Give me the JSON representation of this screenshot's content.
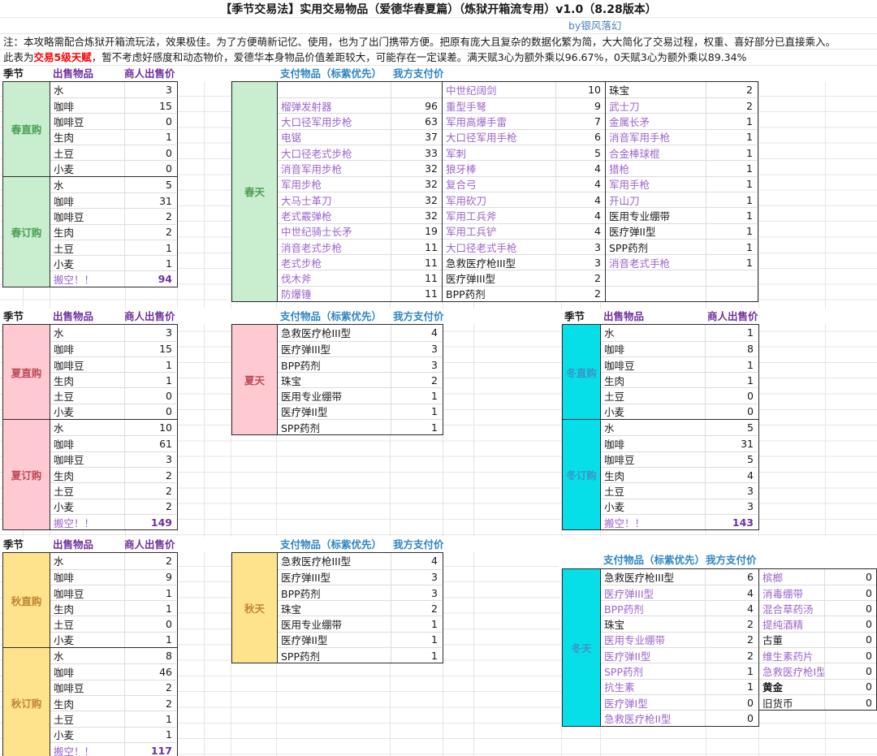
{
  "title": "【季节交易法】实用交易物品（爱德华春夏篇）（炼狱开箱流专用）v1.0（8.28版本）",
  "byline": "by银风落幻",
  "note1": "注：本攻略需配合炼狱开箱流玩法，效果极佳。为了方便萌新记忆、使用，也为了出门携带方便。把原有庞大且复杂的数据化繁为简，大大简化了交易过程，权重、喜好部分已直接乘入。",
  "note2": {
    "prefix": "此表为",
    "highlight": "交易5级天赋",
    "suffix": "，暂不考虑好感度和动态物价，爱德华本身物品价值差距较大，可能存在一定误差。满天赋3心为额外乘以96.67%，0天赋3心为额外乘以89.34%"
  },
  "headers": {
    "season": "季节",
    "sell_item": "出售物品",
    "merchant_price": "商人出售价",
    "pay_item": "支付物品（标紫优先）",
    "our_price": "我方支付价"
  },
  "colors": {
    "item_purple": "#9B63CE",
    "total_purple": "#7030A0",
    "header_purple": "#7030A0",
    "header_blue": "#2E86C4",
    "byline_blue": "#4E7FBF",
    "note_red": "#FF0000",
    "spring_fill": "#C8EDCF",
    "spring_text": "#4B9F55",
    "summer_fill": "#FFC9D2",
    "summer_text": "#BE4A55",
    "autumn_fill": "#FFE28C",
    "autumn_text": "#C08633",
    "winter_fill": "#06DFE8",
    "winter_text": "#3D93C5",
    "border_dark": "#2B2B2B",
    "grid_line": "#E5E5E5",
    "inner_line": "#DCDCDC"
  },
  "sell_tables": [
    {
      "id": "spring-buy",
      "label": "春直购",
      "theme": "spring",
      "rows": [
        [
          "水",
          3
        ],
        [
          "咖啡",
          15
        ],
        [
          "咖啡豆",
          0
        ],
        [
          "生肉",
          1
        ],
        [
          "土豆",
          0
        ],
        [
          "小麦",
          0
        ]
      ]
    },
    {
      "id": "spring-order",
      "label": "春订购",
      "theme": "spring",
      "rows": [
        [
          "水",
          5
        ],
        [
          "咖啡",
          31
        ],
        [
          "咖啡豆",
          2
        ],
        [
          "生肉",
          2
        ],
        [
          "土豆",
          1
        ],
        [
          "小麦",
          1
        ],
        [
          "搬空！！",
          94,
          1
        ]
      ]
    },
    {
      "id": "summer-buy",
      "label": "夏直购",
      "theme": "summer",
      "rows": [
        [
          "水",
          3
        ],
        [
          "咖啡",
          15
        ],
        [
          "咖啡豆",
          1
        ],
        [
          "生肉",
          1
        ],
        [
          "土豆",
          0
        ],
        [
          "小麦",
          0
        ]
      ]
    },
    {
      "id": "summer-order",
      "label": "夏订购",
      "theme": "summer",
      "rows": [
        [
          "水",
          10
        ],
        [
          "咖啡",
          61
        ],
        [
          "咖啡豆",
          3
        ],
        [
          "生肉",
          2
        ],
        [
          "土豆",
          2
        ],
        [
          "小麦",
          2
        ],
        [
          "搬空！！",
          149,
          1
        ]
      ]
    },
    {
      "id": "winter-buy",
      "label": "冬直购",
      "theme": "winter",
      "rows": [
        [
          "水",
          1
        ],
        [
          "咖啡",
          8
        ],
        [
          "咖啡豆",
          1
        ],
        [
          "生肉",
          1
        ],
        [
          "土豆",
          0
        ],
        [
          "小麦",
          0
        ]
      ]
    },
    {
      "id": "winter-order",
      "label": "冬订购",
      "theme": "winter",
      "rows": [
        [
          "水",
          5
        ],
        [
          "咖啡",
          31
        ],
        [
          "咖啡豆",
          5
        ],
        [
          "生肉",
          4
        ],
        [
          "土豆",
          3
        ],
        [
          "小麦",
          3
        ],
        [
          "搬空！！",
          143,
          1
        ]
      ]
    },
    {
      "id": "autumn-buy",
      "label": "秋直购",
      "theme": "autumn",
      "rows": [
        [
          "水",
          2
        ],
        [
          "咖啡",
          9
        ],
        [
          "咖啡豆",
          1
        ],
        [
          "生肉",
          1
        ],
        [
          "土豆",
          0
        ],
        [
          "小麦",
          1
        ]
      ]
    },
    {
      "id": "autumn-order",
      "label": "秋订购",
      "theme": "autumn",
      "rows": [
        [
          "水",
          8
        ],
        [
          "咖啡",
          46
        ],
        [
          "咖啡豆",
          2
        ],
        [
          "生肉",
          2
        ],
        [
          "土豆",
          1
        ],
        [
          "小麦",
          1
        ],
        [
          "搬空！！",
          117,
          1
        ]
      ]
    }
  ],
  "pay_tables": [
    {
      "id": "spring-pay",
      "label": "春天",
      "theme": "spring",
      "pairs": [
        {
          "items": [
            null,
            [
              "榴弹发射器",
              96,
              1
            ],
            [
              "大口径军用步枪",
              63,
              1
            ],
            [
              "电锯",
              37,
              1
            ],
            [
              "大口径老式步枪",
              33,
              1
            ],
            [
              "消音军用步枪",
              32,
              1
            ],
            [
              "军用步枪",
              32,
              1
            ],
            [
              "大马士革刀",
              32,
              1
            ],
            [
              "老式霰弹枪",
              32,
              1
            ],
            [
              "中世纪骑士长矛",
              19,
              1
            ],
            [
              "消音老式步枪",
              11,
              1
            ],
            [
              "老式步枪",
              11,
              1
            ],
            [
              "伐木斧",
              11,
              1
            ],
            [
              "防爆锤",
              11,
              1
            ]
          ]
        },
        {
          "items": [
            [
              "中世纪阔剑",
              10,
              1
            ],
            [
              "重型手弩",
              9,
              1
            ],
            [
              "军用高爆手雷",
              7,
              1
            ],
            [
              "大口径军用手枪",
              6,
              1
            ],
            [
              "军刺",
              5,
              1
            ],
            [
              "狼牙棒",
              4,
              1
            ],
            [
              "复合弓",
              4,
              1
            ],
            [
              "军用砍刀",
              4,
              1
            ],
            [
              "军用工兵斧",
              4,
              1
            ],
            [
              "军用工兵铲",
              4,
              1
            ],
            [
              "大口径老式手枪",
              3,
              1
            ],
            [
              "急救医疗枪III型",
              3,
              0
            ],
            [
              "医疗弹III型",
              2,
              0
            ],
            [
              "BPP药剂",
              2,
              0
            ]
          ]
        },
        {
          "items": [
            [
              "珠宝",
              2,
              0
            ],
            [
              "武士刀",
              2,
              1
            ],
            [
              "金属长矛",
              1,
              1
            ],
            [
              "消音军用手枪",
              1,
              1
            ],
            [
              "合金棒球棍",
              1,
              1
            ],
            [
              "猎枪",
              1,
              1
            ],
            [
              "军用手枪",
              1,
              1
            ],
            [
              "开山刀",
              1,
              1
            ],
            [
              "医用专业绷带",
              1,
              0
            ],
            [
              "医疗弹II型",
              1,
              0
            ],
            [
              "SPP药剂",
              1,
              0
            ],
            [
              "消音老式手枪",
              1,
              1
            ],
            null,
            null
          ]
        }
      ]
    },
    {
      "id": "summer-pay",
      "label": "夏天",
      "theme": "summer",
      "pairs": [
        {
          "items": [
            [
              "急救医疗枪III型",
              4,
              0
            ],
            [
              "医疗弹III型",
              3,
              0
            ],
            [
              "BPP药剂",
              3,
              0
            ],
            [
              "珠宝",
              2,
              0
            ],
            [
              "医用专业绷带",
              1,
              0
            ],
            [
              "医疗弹II型",
              1,
              0
            ],
            [
              "SPP药剂",
              1,
              0
            ]
          ]
        }
      ]
    },
    {
      "id": "autumn-pay",
      "label": "秋天",
      "theme": "autumn",
      "pairs": [
        {
          "items": [
            [
              "急救医疗枪III型",
              4,
              0
            ],
            [
              "医疗弹III型",
              3,
              0
            ],
            [
              "BPP药剂",
              3,
              0
            ],
            [
              "珠宝",
              2,
              0
            ],
            [
              "医用专业绷带",
              1,
              0
            ],
            [
              "医疗弹II型",
              1,
              0
            ],
            [
              "SPP药剂",
              1,
              0
            ]
          ]
        }
      ]
    },
    {
      "id": "winter-pay-1",
      "label": "冬天",
      "theme": "winter",
      "pairs": [
        {
          "items": [
            [
              "急救医疗枪III型",
              6,
              0
            ],
            [
              "医疗弹III型",
              4,
              1
            ],
            [
              "BPP药剂",
              4,
              1
            ],
            [
              "珠宝",
              2,
              0
            ],
            [
              "医用专业绷带",
              2,
              1
            ],
            [
              "医疗弹II型",
              2,
              1
            ],
            [
              "SPP药剂",
              1,
              1
            ],
            [
              "抗生素",
              1,
              1
            ],
            [
              "医疗弹I型",
              0,
              1
            ],
            [
              "急救医疗枪II型",
              0,
              1
            ]
          ]
        }
      ]
    },
    {
      "id": "winter-pay-2",
      "label": null,
      "theme": "winter",
      "pairs": [
        {
          "items": [
            [
              "槟榔",
              0,
              1
            ],
            [
              "消毒绷带",
              0,
              1
            ],
            [
              "混合草药汤",
              0,
              1
            ],
            [
              "提纯酒精",
              0,
              1
            ],
            [
              "古董",
              0,
              0
            ],
            [
              "维生素药片",
              0,
              1
            ],
            [
              "急救医疗枪I型",
              0,
              1
            ],
            [
              "黄金",
              0,
              2
            ],
            [
              "旧货币",
              0,
              0
            ]
          ]
        }
      ]
    }
  ]
}
